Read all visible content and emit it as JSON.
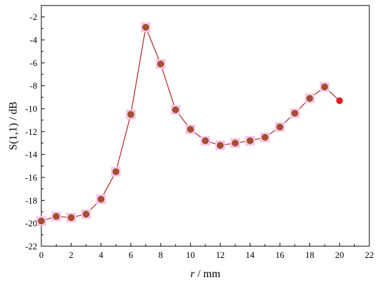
{
  "chart_data": {
    "type": "line",
    "xlabel_italic": "r",
    "xlabel_rest": " / mm",
    "ylabel": "S(1,1) / dB",
    "xlim": [
      0,
      22
    ],
    "ylim": [
      -22,
      -1
    ],
    "xticks": [
      0,
      2,
      4,
      6,
      8,
      10,
      12,
      14,
      16,
      18,
      20,
      22
    ],
    "yticks": [
      -22,
      -20,
      -18,
      -16,
      -14,
      -12,
      -10,
      -8,
      -6,
      -4,
      -2
    ],
    "grid": false,
    "series": [
      {
        "x": [
          0,
          1,
          2,
          3,
          4,
          5,
          6,
          7,
          8,
          9,
          10,
          11,
          12,
          13,
          14,
          15,
          16,
          17,
          18,
          19,
          20
        ],
        "values": [
          -19.8,
          -19.4,
          -19.5,
          -19.2,
          -17.9,
          -15.5,
          -10.5,
          -2.9,
          -6.1,
          -10.1,
          -11.8,
          -12.8,
          -13.2,
          -13.0,
          -12.8,
          -12.5,
          -11.6,
          -10.4,
          -9.1,
          -8.1,
          -9.3
        ]
      }
    ],
    "colors": {
      "line": "#b22222",
      "marker": "#a0522d",
      "marker_last": "#e8161b",
      "marker_halo": "#f3c6e4"
    }
  }
}
